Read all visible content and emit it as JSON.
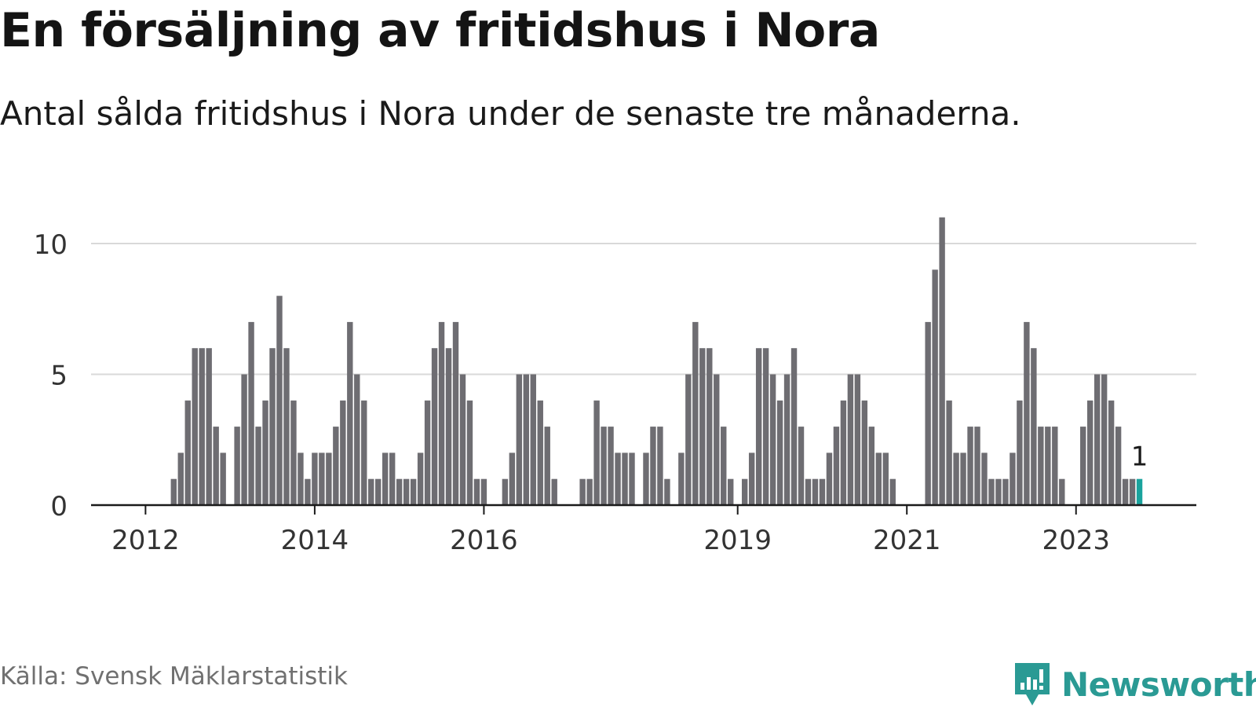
{
  "title": "En försäljning av fritidshus i Nora",
  "subtitle": "Antal sålda fritidshus i Nora under de senaste tre månaderna.",
  "source": "Källa: Svensk Mäklarstatistik",
  "brand": {
    "name": "Newsworthy",
    "color": "#2a9a94"
  },
  "colors": {
    "bar": "#6e6d72",
    "highlight": "#1aa39d",
    "grid": "#d9d9d9",
    "axis": "#1a1a1a"
  },
  "chart_data": {
    "type": "bar",
    "title": "En försäljning av fritidshus i Nora",
    "xlabel": "",
    "ylabel": "",
    "ylim": [
      0,
      11
    ],
    "yticks": [
      0,
      5,
      10
    ],
    "xticks": [
      "2012",
      "2014",
      "2016",
      "2019",
      "2021",
      "2023"
    ],
    "grid": true,
    "highlight_last": true,
    "last_value_label": "1",
    "categories": [
      "2011-07",
      "2011-08",
      "2011-09",
      "2011-10",
      "2011-11",
      "2011-12",
      "2012-01",
      "2012-02",
      "2012-03",
      "2012-04",
      "2012-05",
      "2012-06",
      "2012-07",
      "2012-08",
      "2012-09",
      "2012-10",
      "2012-11",
      "2012-12",
      "2013-01",
      "2013-02",
      "2013-03",
      "2013-04",
      "2013-05",
      "2013-06",
      "2013-07",
      "2013-08",
      "2013-09",
      "2013-10",
      "2013-11",
      "2013-12",
      "2014-01",
      "2014-02",
      "2014-03",
      "2014-04",
      "2014-05",
      "2014-06",
      "2014-07",
      "2014-08",
      "2014-09",
      "2014-10",
      "2014-11",
      "2014-12",
      "2015-01",
      "2015-02",
      "2015-03",
      "2015-04",
      "2015-05",
      "2015-06",
      "2015-07",
      "2015-08",
      "2015-09",
      "2015-10",
      "2015-11",
      "2015-12",
      "2016-01",
      "2016-02",
      "2016-03",
      "2016-04",
      "2016-05",
      "2016-06",
      "2016-07",
      "2016-08",
      "2016-09",
      "2016-10",
      "2016-11",
      "2016-12",
      "2017-01",
      "2017-02",
      "2017-03",
      "2017-04",
      "2017-05",
      "2017-06",
      "2017-07",
      "2017-08",
      "2017-09",
      "2017-10",
      "2017-11",
      "2017-12",
      "2018-01",
      "2018-02",
      "2018-03",
      "2018-04",
      "2018-05",
      "2018-06",
      "2018-07",
      "2018-08",
      "2018-09",
      "2018-10",
      "2018-11",
      "2018-12",
      "2019-01",
      "2019-02",
      "2019-03",
      "2019-04",
      "2019-05",
      "2019-06",
      "2019-07",
      "2019-08",
      "2019-09",
      "2019-10",
      "2019-11",
      "2019-12",
      "2020-01",
      "2020-02",
      "2020-03",
      "2020-04",
      "2020-05",
      "2020-06",
      "2020-07",
      "2020-08",
      "2020-09",
      "2020-10",
      "2020-11",
      "2020-12",
      "2021-01",
      "2021-02",
      "2021-03",
      "2021-04",
      "2021-05",
      "2021-06",
      "2021-07",
      "2021-08",
      "2021-09",
      "2021-10",
      "2021-11",
      "2021-12",
      "2022-01",
      "2022-02",
      "2022-03",
      "2022-04",
      "2022-05",
      "2022-06",
      "2022-07",
      "2022-08",
      "2022-09",
      "2022-10",
      "2022-11",
      "2022-12",
      "2023-01",
      "2023-02",
      "2023-03",
      "2023-04",
      "2023-05",
      "2023-06",
      "2023-07",
      "2023-08",
      "2023-09",
      "2023-10"
    ],
    "values": [
      0,
      0,
      0,
      0,
      0,
      0,
      0,
      0,
      0,
      0,
      1,
      2,
      4,
      6,
      6,
      6,
      3,
      2,
      0,
      3,
      5,
      7,
      3,
      4,
      6,
      8,
      6,
      4,
      2,
      1,
      2,
      2,
      2,
      3,
      4,
      7,
      5,
      4,
      1,
      1,
      2,
      2,
      1,
      1,
      1,
      2,
      4,
      6,
      7,
      6,
      7,
      5,
      4,
      1,
      1,
      0,
      0,
      1,
      2,
      5,
      5,
      5,
      4,
      3,
      1,
      0,
      0,
      0,
      1,
      1,
      4,
      3,
      3,
      2,
      2,
      2,
      0,
      2,
      3,
      3,
      1,
      0,
      2,
      5,
      7,
      6,
      6,
      5,
      3,
      1,
      0,
      1,
      2,
      6,
      6,
      5,
      4,
      5,
      6,
      3,
      1,
      1,
      1,
      2,
      3,
      4,
      5,
      5,
      4,
      3,
      2,
      2,
      1,
      0,
      0,
      0,
      0,
      7,
      9,
      11,
      4,
      2,
      2,
      3,
      3,
      2,
      1,
      1,
      1,
      2,
      4,
      7,
      6,
      3,
      3,
      3,
      1,
      0,
      0,
      3,
      4,
      5,
      5,
      4,
      3,
      1,
      1,
      1
    ]
  }
}
